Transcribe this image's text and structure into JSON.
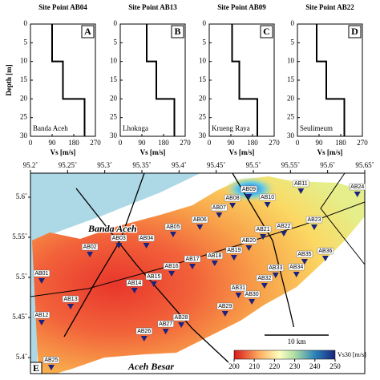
{
  "chart_data": [
    {
      "type": "line",
      "title": "Site Point AB04",
      "letter": "A",
      "site": "Banda Aceh",
      "xlabel": "Vs [m/s]",
      "ylabel": "Depth [m]",
      "xlim": [
        0,
        270
      ],
      "xticks": [
        0,
        90,
        180,
        270
      ],
      "ylim": [
        0,
        30
      ],
      "yticks": [
        0,
        5,
        10,
        15,
        20,
        25,
        30
      ],
      "y_inverted": true,
      "series": [
        {
          "color": "#000000",
          "x": [
            90,
            90,
            135,
            135,
            225,
            225
          ],
          "values": [
            0,
            10,
            10,
            20,
            20,
            30
          ]
        }
      ]
    },
    {
      "type": "line",
      "title": "Site Point AB13",
      "letter": "B",
      "site": "Lhoknga",
      "xlabel": "Vs [m/s]",
      "xlim": [
        0,
        270
      ],
      "xticks": [
        0,
        90,
        180,
        270
      ],
      "ylim": [
        0,
        30
      ],
      "yticks": [
        0,
        5,
        10,
        15,
        20,
        25,
        30
      ],
      "y_inverted": true,
      "series": [
        {
          "color": "#000000",
          "x": [
            110,
            110,
            150,
            150,
            225,
            225
          ],
          "values": [
            0,
            10,
            10,
            20,
            20,
            30
          ]
        }
      ]
    },
    {
      "type": "line",
      "title": "Site Point AB09",
      "letter": "C",
      "site": "Krueng Raya",
      "xlabel": "Vs [m/s]",
      "xlim": [
        0,
        270
      ],
      "xticks": [
        0,
        90,
        180,
        270
      ],
      "ylim": [
        0,
        30
      ],
      "yticks": [
        0,
        5,
        10,
        15,
        20,
        25,
        30
      ],
      "y_inverted": true,
      "series": [
        {
          "color": "#000000",
          "x": [
            95,
            95,
            125,
            125,
            200,
            200
          ],
          "values": [
            0,
            10,
            10,
            20,
            20,
            30
          ]
        }
      ]
    },
    {
      "type": "line",
      "title": "Site Point AB22",
      "letter": "D",
      "site": "Seulimeum",
      "xlabel": "Vs [m/s]",
      "xlim": [
        0,
        270
      ],
      "xticks": [
        0,
        90,
        180,
        270
      ],
      "ylim": [
        0,
        30
      ],
      "yticks": [
        0,
        5,
        10,
        15,
        20,
        25,
        30
      ],
      "y_inverted": true,
      "series": [
        {
          "color": "#000000",
          "x": [
            80,
            80,
            120,
            120,
            195,
            195
          ],
          "values": [
            0,
            10,
            10,
            20,
            20,
            30
          ]
        }
      ]
    },
    {
      "type": "scatter",
      "letter": "E",
      "annotations": [
        "Banda Aceh",
        "Aceh Besar"
      ],
      "scale_bar": "10 km",
      "xlim": [
        95.2,
        95.65
      ],
      "xticks": [
        {
          "value": 95.2,
          "label": "95.2˚"
        },
        {
          "value": 95.25,
          "label": "95.25˚"
        },
        {
          "value": 95.3,
          "label": "95.3˚"
        },
        {
          "value": 95.35,
          "label": "95.35˚"
        },
        {
          "value": 95.4,
          "label": "95.4˚"
        },
        {
          "value": 95.45,
          "label": "95.45˚"
        },
        {
          "value": 95.5,
          "label": "95.5˚"
        },
        {
          "value": 95.55,
          "label": "95.55˚"
        },
        {
          "value": 95.6,
          "label": "95.6˚"
        },
        {
          "value": 95.65,
          "label": "95.65˚"
        }
      ],
      "ylim": [
        5.38,
        5.63
      ],
      "yticks": [
        {
          "value": 5.4,
          "label": "5.4˚"
        },
        {
          "value": 5.45,
          "label": "5.45˚"
        },
        {
          "value": 5.5,
          "label": "5.5˚"
        },
        {
          "value": 5.55,
          "label": "5.55˚"
        },
        {
          "value": 5.6,
          "label": "5.6˚"
        }
      ],
      "color": "#1a237e",
      "labels": [
        "AB01",
        "AB02",
        "AB03",
        "AB04",
        "AB05",
        "AB06",
        "AB07",
        "AB08",
        "AB09",
        "AB10",
        "AB11",
        "AB12",
        "AB13",
        "AB14",
        "AB15",
        "AB16",
        "AB17",
        "AB18",
        "AB19",
        "AB20",
        "AB21",
        "AB22",
        "AB23",
        "AB24",
        "AB25",
        "AB26",
        "AB27",
        "AB28",
        "AB29",
        "AB30",
        "AB31",
        "AB32",
        "AB33",
        "AB34",
        "AB35",
        "AB36"
      ],
      "x": [
        95.215,
        95.28,
        95.319,
        95.356,
        95.392,
        95.428,
        95.454,
        95.472,
        95.494,
        95.519,
        95.564,
        95.215,
        95.254,
        95.34,
        95.366,
        95.39,
        95.418,
        95.448,
        95.474,
        95.494,
        95.513,
        95.541,
        95.582,
        95.64,
        95.228,
        95.353,
        95.382,
        95.403,
        95.462,
        95.498,
        95.48,
        95.515,
        95.53,
        95.558,
        95.569,
        95.597
      ],
      "values": [
        5.496,
        5.529,
        5.54,
        5.54,
        5.554,
        5.563,
        5.578,
        5.59,
        5.601,
        5.591,
        5.608,
        5.444,
        5.464,
        5.484,
        5.492,
        5.505,
        5.514,
        5.518,
        5.525,
        5.537,
        5.551,
        5.555,
        5.563,
        5.604,
        5.388,
        5.424,
        5.433,
        5.441,
        5.455,
        5.47,
        5.478,
        5.49,
        5.503,
        5.504,
        5.52,
        5.524
      ],
      "colorbar": {
        "label": "Vs30 [m/s]",
        "lim": [
          200,
          250
        ],
        "ticks": [
          200,
          210,
          220,
          230,
          240,
          250
        ]
      }
    }
  ]
}
